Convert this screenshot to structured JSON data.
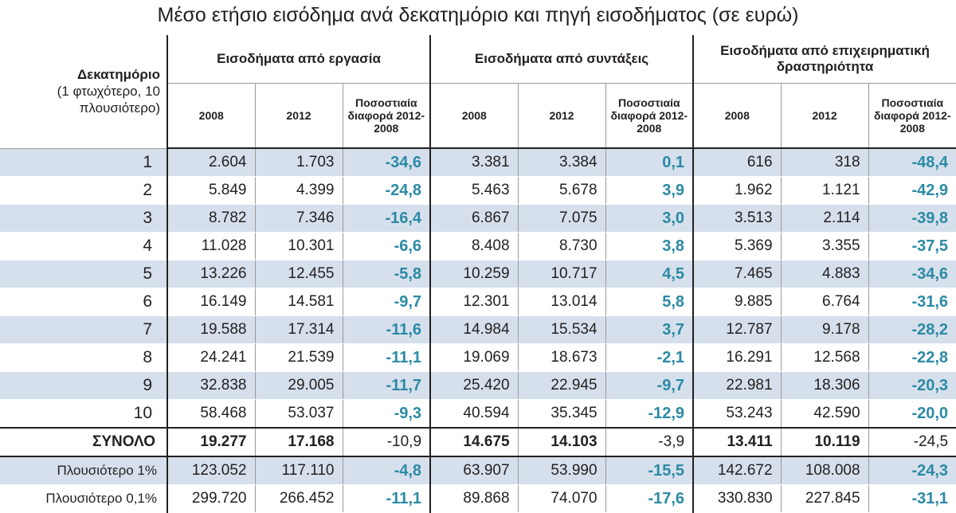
{
  "title": "Μέσο ετήσιο εισόδημα ανά δεκατημόριο και πηγή εισοδήματος (σε ευρώ)",
  "header": {
    "decile_title": "Δεκατημόριο",
    "decile_note": "(1 φτωχότερο, 10 πλουσιότερο)",
    "groups": [
      "Εισοδήματα από εργασία",
      "Εισοδήματα από συντάξεις",
      "Εισοδήματα από επιχειρηματική δραστηριότητα"
    ],
    "col_2008": "2008",
    "col_2012": "2012",
    "col_pct": "Ποσοστιαία διαφορά 2012-2008"
  },
  "colors": {
    "shade": "#d6e0ec",
    "pct_text": "#2b8aa5",
    "text": "#231f20"
  },
  "chart_data": {
    "type": "table",
    "title": "Μέσο ετήσιο εισόδημα ανά δεκατημόριο και πηγή εισοδήματος (σε ευρώ)",
    "columns": [
      "Δεκατημόριο",
      "Εργασία 2008",
      "Εργασία 2012",
      "Εργασία %",
      "Συντάξεις 2008",
      "Συντάξεις 2012",
      "Συντάξεις %",
      "Επιχειρηματική 2008",
      "Επιχειρηματική 2012",
      "Επιχειρηματική %"
    ],
    "rows": [
      [
        "1",
        "2.604",
        "1.703",
        "-34,6",
        "3.381",
        "3.384",
        "0,1",
        "616",
        "318",
        "-48,4"
      ],
      [
        "2",
        "5.849",
        "4.399",
        "-24,8",
        "5.463",
        "5.678",
        "3,9",
        "1.962",
        "1.121",
        "-42,9"
      ],
      [
        "3",
        "8.782",
        "7.346",
        "-16,4",
        "6.867",
        "7.075",
        "3,0",
        "3.513",
        "2.114",
        "-39,8"
      ],
      [
        "4",
        "11.028",
        "10.301",
        "-6,6",
        "8.408",
        "8.730",
        "3,8",
        "5.369",
        "3.355",
        "-37,5"
      ],
      [
        "5",
        "13.226",
        "12.455",
        "-5,8",
        "10.259",
        "10.717",
        "4,5",
        "7.465",
        "4.883",
        "-34,6"
      ],
      [
        "6",
        "16.149",
        "14.581",
        "-9,7",
        "12.301",
        "13.014",
        "5,8",
        "9.885",
        "6.764",
        "-31,6"
      ],
      [
        "7",
        "19.588",
        "17.314",
        "-11,6",
        "14.984",
        "15.534",
        "3,7",
        "12.787",
        "9.178",
        "-28,2"
      ],
      [
        "8",
        "24.241",
        "21.539",
        "-11,1",
        "19.069",
        "18.673",
        "-2,1",
        "16.291",
        "12.568",
        "-22,8"
      ],
      [
        "9",
        "32.838",
        "29.005",
        "-11,7",
        "25.420",
        "22.945",
        "-9,7",
        "22.981",
        "18.306",
        "-20,3"
      ],
      [
        "10",
        "58.468",
        "53.037",
        "-9,3",
        "40.594",
        "35.345",
        "-12,9",
        "53.243",
        "42.590",
        "-20,0"
      ]
    ],
    "total": [
      "ΣΥΝΟΛΟ",
      "19.277",
      "17.168",
      "-10,9",
      "14.675",
      "14.103",
      "-3,9",
      "13.411",
      "10.119",
      "-24,5"
    ],
    "extra_rows": [
      [
        "Πλουσιότερο 1%",
        "123.052",
        "117.110",
        "-4,8",
        "63.907",
        "53.990",
        "-15,5",
        "142.672",
        "108.008",
        "-24,3"
      ],
      [
        "Πλουσιότερο 0,1%",
        "299.720",
        "266.452",
        "-11,1",
        "89.868",
        "74.070",
        "-17,6",
        "330.830",
        "227.845",
        "-31,1"
      ]
    ]
  }
}
